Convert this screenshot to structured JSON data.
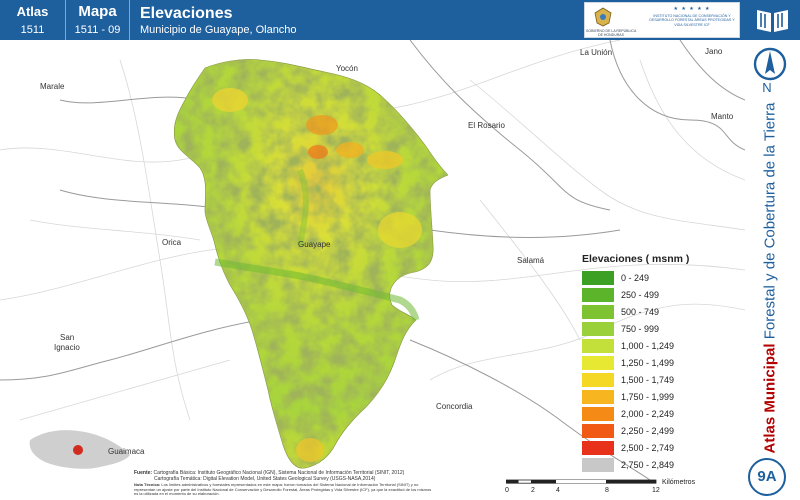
{
  "header": {
    "atlas_label": "Atlas",
    "atlas_code": "1511",
    "map_label": "Mapa",
    "map_code": "1511 - 09",
    "title": "Elevaciones",
    "subtitle": "Municipio de Guayape, Olancho",
    "logo_left_caption": "GOBIERNO DE LA REPÚBLICA DE HONDURAS",
    "logo_right_stars": "★ ★ ★ ★ ★",
    "logo_right_caption": "INSTITUTO NACIONAL DE CONSERVACIÓN Y DESARROLLO FORESTAL ÁREAS PROTEGIDAS Y VIDA SILVESTRE ICF"
  },
  "sidebar": {
    "north_label": "N",
    "vertical_title_bold": "Atlas Municipal",
    "vertical_title_rest": " Forestal y de Cobertura de la Tierra",
    "badge": "9A"
  },
  "map": {
    "towns": [
      {
        "name": "Yocón"
      },
      {
        "name": "La Unión"
      },
      {
        "name": "Jano"
      },
      {
        "name": "Marale"
      },
      {
        "name": "El Rosario"
      },
      {
        "name": "Manto"
      },
      {
        "name": "Orica"
      },
      {
        "name": "Guayape"
      },
      {
        "name": "Salamá"
      },
      {
        "name": "San"
      },
      {
        "name": "Ignacio"
      },
      {
        "name": "Concordia"
      },
      {
        "name": "Guaimaca"
      }
    ]
  },
  "legend": {
    "title": "Elevaciones ( msnm )",
    "items": [
      {
        "label": "0 - 249",
        "color": "#3ba024"
      },
      {
        "label": "250 - 499",
        "color": "#5cb42a"
      },
      {
        "label": "500 - 749",
        "color": "#7dc332"
      },
      {
        "label": "750 - 999",
        "color": "#9ad13a"
      },
      {
        "label": "1,000 - 1,249",
        "color": "#c2df3a"
      },
      {
        "label": "1,250 - 1,499",
        "color": "#e6e832"
      },
      {
        "label": "1,500 - 1,749",
        "color": "#f5d823"
      },
      {
        "label": "1,750 - 1,999",
        "color": "#f7b51f"
      },
      {
        "label": "2,000 - 2,249",
        "color": "#f58a17"
      },
      {
        "label": "2,250 - 2,499",
        "color": "#f05a14"
      },
      {
        "label": "2,500 - 2,749",
        "color": "#e8311a"
      },
      {
        "label": "2,750 - 2,849",
        "color": "#c8c8c8"
      }
    ]
  },
  "footer": {
    "fuente_label": "Fuente:",
    "fuente_line1": "Cartografía Básica: Instituto Geográfico Nacional (IGN), Sistema Nacional de Información Territorial (SINIT, 2012)",
    "fuente_line2": "Cartografía Temática: Digital Elevation Model, United States Geological Survey (USGS-NASA,2014)",
    "nota_label": "Nota Técnica:",
    "nota_text": "Los límites administrativos y forestales representados en este mapa; fueron tomados del Sistema Nacional de Información Territorial (SINIT) y no representan un ajuste por parte del Instituto Nacional de Conservación y Desarrollo Forestal, Áreas Protegidas y Vida Silvestre (ICF), ya que la exactitud de los mismos es la utilizada en el momento de su elaboración.",
    "scale_ticks": [
      "0",
      "2",
      "4",
      "8",
      "12"
    ],
    "scale_unit": "Kilómetros"
  }
}
